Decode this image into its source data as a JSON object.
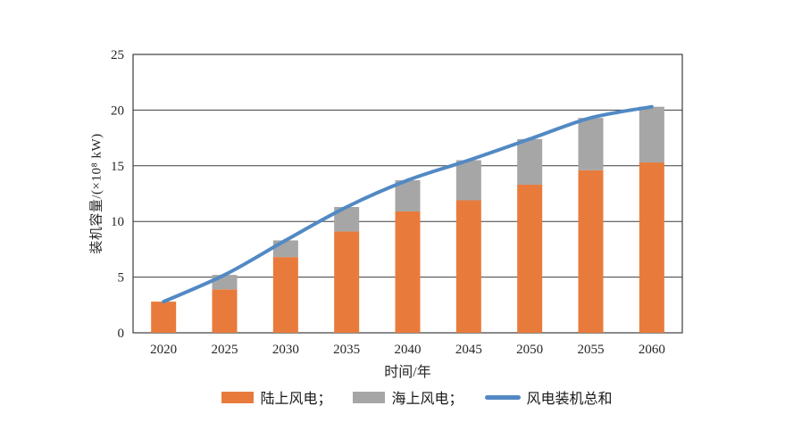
{
  "figure": {
    "background": "#ffffff",
    "text_color": "#262626",
    "axis_color": "#3d3d3d"
  },
  "chart_data": {
    "type": "bar",
    "subtype": "stacked-bar-with-smooth-line-overlay",
    "title": "",
    "xlabel": "时间/年",
    "ylabel": "装机容量/(×10⁸ kW)",
    "categories": [
      "2020",
      "2025",
      "2030",
      "2035",
      "2040",
      "2045",
      "2050",
      "2055",
      "2060"
    ],
    "series": [
      {
        "name": "陆上风电",
        "kind": "bar",
        "color": "#E87B3C",
        "values": [
          2.8,
          3.9,
          6.8,
          9.1,
          10.9,
          11.9,
          13.3,
          14.6,
          15.3
        ]
      },
      {
        "name": "海上风电",
        "kind": "bar",
        "color": "#A6A6A6",
        "values": [
          0,
          1.3,
          1.5,
          2.2,
          2.8,
          3.6,
          4.1,
          4.7,
          5.0
        ]
      },
      {
        "name": "风电装机总和",
        "kind": "line",
        "color": "#5289C4",
        "values": [
          2.8,
          5.2,
          8.3,
          11.3,
          13.7,
          15.5,
          17.4,
          19.3,
          20.3
        ]
      }
    ],
    "ylim": [
      0,
      25
    ],
    "yticks": [
      0,
      5,
      10,
      15,
      20,
      25
    ],
    "grid": true,
    "legend_position": "bottom"
  },
  "legend": {
    "items": [
      {
        "label": "陆上风电；",
        "color": "#E87B3C",
        "marker": "rect"
      },
      {
        "label": "海上风电；",
        "color": "#A6A6A6",
        "marker": "rect"
      },
      {
        "label": "风电装机总和",
        "color": "#5289C4",
        "marker": "line"
      }
    ]
  }
}
